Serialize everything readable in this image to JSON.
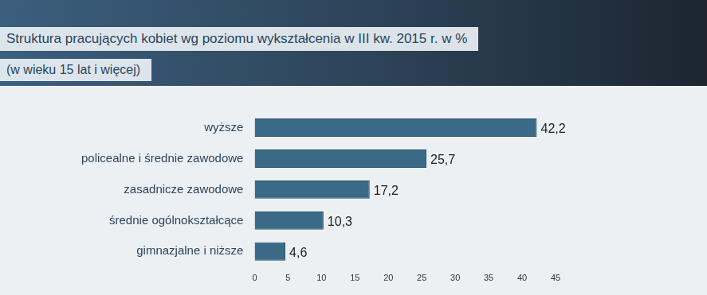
{
  "chart_data": {
    "type": "bar",
    "title": "Struktura pracujących kobiet wg poziomu wykształcenia w III kw. 2015 r. w %",
    "subtitle": "(w wieku 15 lat i więcej)",
    "orientation": "horizontal",
    "categories": [
      "wyższe",
      "policealne i średnie zawodowe",
      "zasadnicze zawodowe",
      "średnie ogólnokształcące",
      "gimnazjalne i niższe"
    ],
    "values": [
      42.2,
      25.7,
      17.2,
      10.3,
      4.6
    ],
    "value_labels": [
      "42,2",
      "25,7",
      "17,2",
      "10,3",
      "4,6"
    ],
    "color": "#3b6a87",
    "xlim": [
      0,
      45
    ],
    "xticks": [
      0,
      5,
      10,
      15,
      20,
      25,
      30,
      35,
      40,
      45
    ],
    "grid": false,
    "data_labels": true
  }
}
